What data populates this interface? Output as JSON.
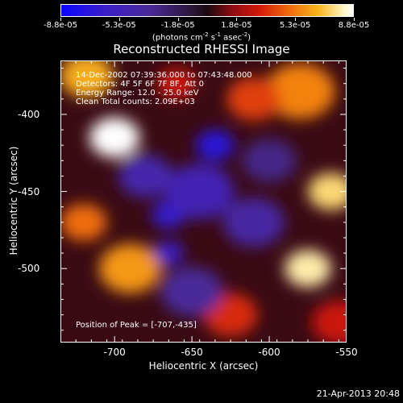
{
  "colorbar": {
    "labels": [
      "-8.8e-05",
      "-5.3e-05",
      "-1.8e-05",
      "1.8e-05",
      "5.3e-05",
      "8.8e-05"
    ],
    "unit_base": "(photons cm",
    "unit_sup1": "-2",
    "unit_mid1": " s",
    "unit_sup2": "-1",
    "unit_mid2": " asec",
    "unit_sup3": "-2",
    "unit_end": ")"
  },
  "info_lines": [
    "14-Dec-2002 07:39:36.000 to 07:43:48.000",
    "Detectors: 4F 5F 6F 7F 8F, Att 0",
    "Energy Range: 12.0 - 25.0 keV",
    "Clean   Total counts: 2.09E+03"
  ],
  "peak_label": "Position of Peak = [-707,-435]",
  "footer_date": "21-Apr-2013 20:48",
  "chart_data": {
    "type": "heatmap",
    "title": "Reconstructed RHESSI Image",
    "xlabel": "Heliocentric X (arcsec)",
    "ylabel": "Heliocentric Y (arcsec)",
    "xlim": [
      -735,
      -550
    ],
    "ylim": [
      -548,
      -365
    ],
    "x_ticks": [
      -700,
      -650,
      -600,
      -550
    ],
    "y_ticks": [
      -400,
      -450,
      -500
    ],
    "x_tick_labels": [
      "-700",
      "-650",
      "-600",
      "-550"
    ],
    "y_tick_labels": [
      "-400",
      "-450",
      "-500"
    ],
    "colorbar_range": [
      -8.8e-05,
      8.8e-05
    ],
    "peak": [
      -707,
      -435
    ],
    "blobs": [
      {
        "x": -700,
        "y": -415,
        "value": 8.8e-05,
        "size": 13
      },
      {
        "x": -718,
        "y": -375,
        "value": 6.5e-05,
        "size": 14
      },
      {
        "x": -690,
        "y": -500,
        "value": 6e-05,
        "size": 16
      },
      {
        "x": -720,
        "y": -470,
        "value": 5e-05,
        "size": 12
      },
      {
        "x": -560,
        "y": -450,
        "value": 7.5e-05,
        "size": 12
      },
      {
        "x": -575,
        "y": -500,
        "value": 8e-05,
        "size": 12
      },
      {
        "x": -580,
        "y": -385,
        "value": 5.5e-05,
        "size": 18
      },
      {
        "x": -610,
        "y": -390,
        "value": 4e-05,
        "size": 14
      },
      {
        "x": -625,
        "y": -530,
        "value": 3.5e-05,
        "size": 14
      },
      {
        "x": -555,
        "y": -535,
        "value": 3e-05,
        "size": 14
      },
      {
        "x": -660,
        "y": -380,
        "value": 3e-05,
        "size": 10
      },
      {
        "x": -635,
        "y": -420,
        "value": -7e-05,
        "size": 10
      },
      {
        "x": -665,
        "y": -465,
        "value": -6.5e-05,
        "size": 9
      },
      {
        "x": -665,
        "y": -490,
        "value": -6e-05,
        "size": 8
      },
      {
        "x": -645,
        "y": -450,
        "value": -5e-05,
        "size": 18
      },
      {
        "x": -610,
        "y": -470,
        "value": -4e-05,
        "size": 16
      },
      {
        "x": -680,
        "y": -440,
        "value": -4.5e-05,
        "size": 14
      },
      {
        "x": -650,
        "y": -515,
        "value": -3.5e-05,
        "size": 16
      },
      {
        "x": -600,
        "y": -430,
        "value": -3e-05,
        "size": 14
      }
    ]
  }
}
